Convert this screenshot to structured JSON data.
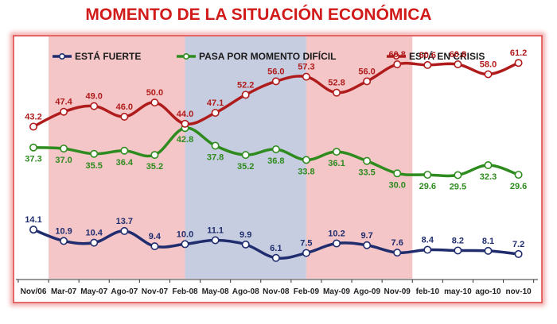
{
  "chart_data": {
    "type": "line",
    "title": "MOMENTO DE LA SITUACIÓN ECONÓMICA",
    "categories": [
      "Nov/06",
      "Mar-07",
      "May-07",
      "Ago-07",
      "Nov-07",
      "Feb-08",
      "May-08",
      "Ago-08",
      "Nov-08",
      "Feb-09",
      "May-09",
      "Ago-09",
      "Nov-09",
      "feb-10",
      "may-10",
      "ago-10",
      "nov-10"
    ],
    "ylim": [
      0,
      70
    ],
    "legend_position": "top",
    "grid": false,
    "series": [
      {
        "name": "ESTÁ FUERTE",
        "color": "#1f2d6e",
        "values": [
          14.1,
          10.9,
          10.4,
          13.7,
          9.4,
          10.0,
          11.1,
          9.9,
          6.1,
          7.5,
          10.2,
          9.7,
          7.6,
          8.4,
          8.2,
          8.1,
          7.2
        ],
        "labels": [
          "14.1",
          "10.9",
          "10.4",
          "13.7",
          "9.4",
          "10.0",
          "11.1",
          "9.9",
          "6.1",
          "7.5",
          "10.2",
          "9.7",
          "7.6",
          "8.4",
          "8.2",
          "8.1",
          "7.2"
        ]
      },
      {
        "name": "PASA POR MOMENTO DIFÍCIL",
        "color": "#2e8b1e",
        "values": [
          37.3,
          37.0,
          35.5,
          36.4,
          35.2,
          42.8,
          37.8,
          35.2,
          36.8,
          33.8,
          36.1,
          33.5,
          30.0,
          29.6,
          29.5,
          32.3,
          29.6
        ],
        "labels": [
          "37.3",
          "37.0",
          "35.5",
          "36.4",
          "35.2",
          "42.8",
          "37.8",
          "35.2",
          "36.8",
          "33.8",
          "36.1",
          "33.5",
          "30.0",
          "29.6",
          "29.5",
          "32.3",
          "29.6"
        ]
      },
      {
        "name": "ESTÁ EN CRISIS",
        "color": "#b01c1c",
        "values": [
          43.2,
          47.4,
          49.0,
          46.0,
          50.0,
          44.0,
          47.1,
          52.2,
          56.0,
          57.3,
          52.8,
          56.0,
          60.8,
          60.6,
          60.8,
          58.0,
          61.2
        ],
        "labels": [
          "43.2",
          "47.4",
          "49.0",
          "46.0",
          "50.0",
          "44.0",
          "47.1",
          "52.2",
          "56.0",
          "57.3",
          "52.8",
          "56.0",
          "60.8",
          "60.6",
          "60.8",
          "58.0",
          "61.2"
        ]
      }
    ],
    "background_bands": [
      {
        "from_index": 0.5,
        "to_index": 5,
        "color": "#f4c6c8"
      },
      {
        "from_index": 5,
        "to_index": 9,
        "color": "#c7cde0"
      },
      {
        "from_index": 9,
        "to_index": 12.5,
        "color": "#f4c6c8"
      }
    ]
  }
}
